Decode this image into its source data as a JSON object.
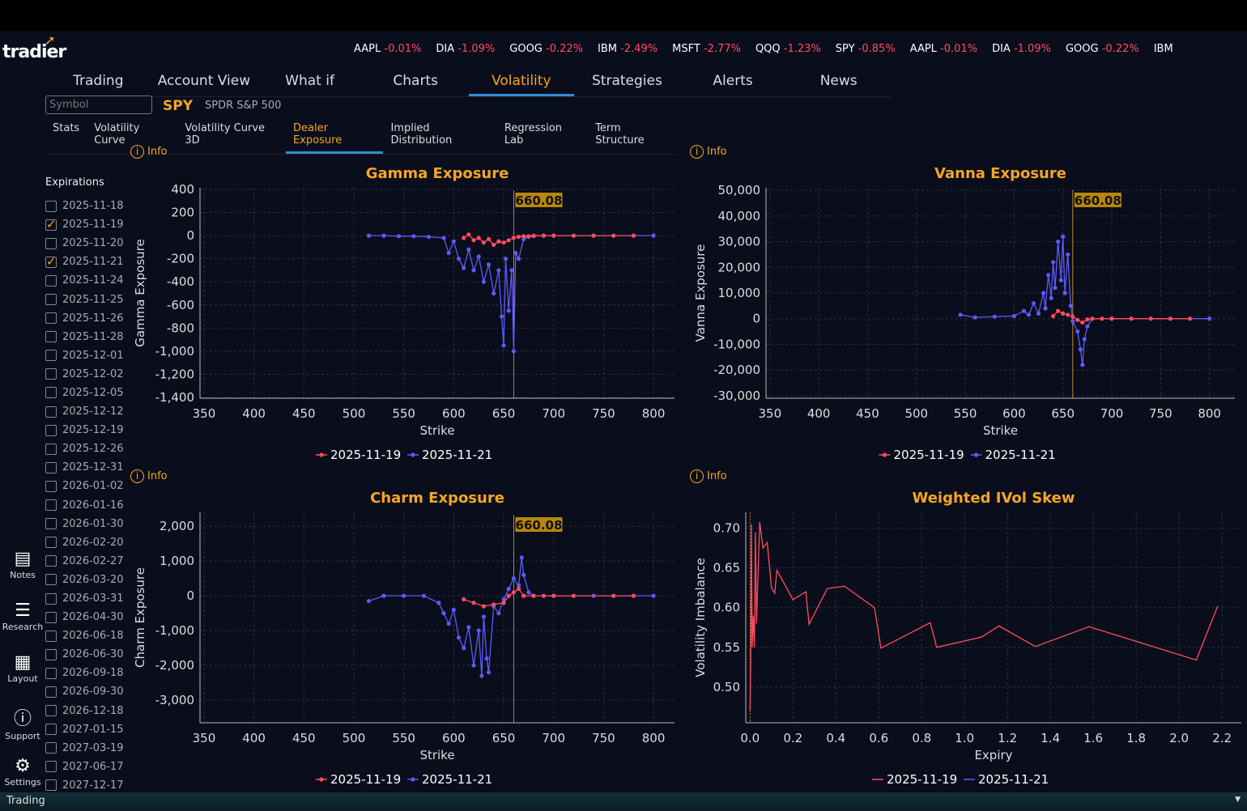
{
  "app": {
    "logo": "tradier"
  },
  "ticker": [
    {
      "sym": "AAPL",
      "chg": "-0.01%"
    },
    {
      "sym": "DIA",
      "chg": "-1.09%"
    },
    {
      "sym": "GOOG",
      "chg": "-0.22%"
    },
    {
      "sym": "IBM",
      "chg": "-2.49%"
    },
    {
      "sym": "MSFT",
      "chg": "-2.77%"
    },
    {
      "sym": "QQQ",
      "chg": "-1.23%"
    },
    {
      "sym": "SPY",
      "chg": "-0.85%"
    },
    {
      "sym": "AAPL",
      "chg": "-0.01%"
    },
    {
      "sym": "DIA",
      "chg": "-1.09%"
    },
    {
      "sym": "GOOG",
      "chg": "-0.22%"
    },
    {
      "sym": "IBM",
      "chg": ""
    }
  ],
  "nav": [
    "Trading",
    "Account View",
    "What if",
    "Charts",
    "Volatility",
    "Strategies",
    "Alerts",
    "News"
  ],
  "nav_active": 4,
  "symbol": {
    "placeholder": "Symbol",
    "ticker": "SPY",
    "name": "SPDR S&P 500"
  },
  "subtabs": [
    "Stats",
    "Volatility Curve",
    "Volatility Curve 3D",
    "Dealer Exposure",
    "Implied Distribution",
    "Regression Lab",
    "Term Structure"
  ],
  "subtab_active": 3,
  "info_label": "Info",
  "expirations_title": "Expirations",
  "expirations": [
    {
      "d": "2025-11-18",
      "c": false
    },
    {
      "d": "2025-11-19",
      "c": true
    },
    {
      "d": "2025-11-20",
      "c": false
    },
    {
      "d": "2025-11-21",
      "c": true
    },
    {
      "d": "2025-11-24",
      "c": false
    },
    {
      "d": "2025-11-25",
      "c": false
    },
    {
      "d": "2025-11-26",
      "c": false
    },
    {
      "d": "2025-11-28",
      "c": false
    },
    {
      "d": "2025-12-01",
      "c": false
    },
    {
      "d": "2025-12-02",
      "c": false
    },
    {
      "d": "2025-12-05",
      "c": false
    },
    {
      "d": "2025-12-12",
      "c": false
    },
    {
      "d": "2025-12-19",
      "c": false
    },
    {
      "d": "2025-12-26",
      "c": false
    },
    {
      "d": "2025-12-31",
      "c": false
    },
    {
      "d": "2026-01-02",
      "c": false
    },
    {
      "d": "2026-01-16",
      "c": false
    },
    {
      "d": "2026-01-30",
      "c": false
    },
    {
      "d": "2026-02-20",
      "c": false
    },
    {
      "d": "2026-02-27",
      "c": false
    },
    {
      "d": "2026-03-20",
      "c": false
    },
    {
      "d": "2026-03-31",
      "c": false
    },
    {
      "d": "2026-04-30",
      "c": false
    },
    {
      "d": "2026-06-18",
      "c": false
    },
    {
      "d": "2026-06-30",
      "c": false
    },
    {
      "d": "2026-09-18",
      "c": false
    },
    {
      "d": "2026-09-30",
      "c": false
    },
    {
      "d": "2026-12-18",
      "c": false
    },
    {
      "d": "2027-01-15",
      "c": false
    },
    {
      "d": "2027-03-19",
      "c": false
    },
    {
      "d": "2027-06-17",
      "c": false
    },
    {
      "d": "2027-12-17",
      "c": false
    }
  ],
  "side": [
    {
      "icon": "notes-icon",
      "g": "▤",
      "label": "Notes"
    },
    {
      "icon": "research-icon",
      "g": "☰",
      "label": "Research"
    },
    {
      "icon": "layout-icon",
      "g": "▦",
      "label": "Layout"
    },
    {
      "icon": "support-icon",
      "g": "ⓘ",
      "label": "Support"
    },
    {
      "icon": "settings-icon",
      "g": "⚙",
      "label": "Settings"
    }
  ],
  "bottom": {
    "label": "Trading"
  },
  "colors": {
    "red": "#ff4d5e",
    "blue": "#5a5cf5",
    "accent": "#f5a623"
  },
  "chart_data": [
    {
      "type": "line",
      "title": "Gamma Exposure",
      "xlabel": "Strike",
      "ylabel": "Gamma Exposure",
      "xlim": [
        346,
        821
      ],
      "ylim": [
        -1407,
        414
      ],
      "xticks": [
        350,
        400,
        450,
        500,
        550,
        600,
        650,
        700,
        750,
        800
      ],
      "yticks": [
        400,
        200,
        0,
        -200,
        -400,
        -600,
        -800,
        -1000,
        -1200,
        -1400
      ],
      "yfmt": "comma",
      "spot": 660.08,
      "spot_label": "660.08",
      "markers": true,
      "series": [
        {
          "name": "2025-11-19",
          "color": "#ff4d5e",
          "x": [
            610,
            615,
            620,
            625,
            630,
            635,
            640,
            645,
            650,
            655,
            660,
            665,
            670,
            675,
            680,
            690,
            700,
            720,
            740,
            760,
            780
          ],
          "y": [
            -20,
            10,
            -40,
            -20,
            -60,
            -30,
            -80,
            -50,
            -60,
            -40,
            -20,
            -10,
            -5,
            -5,
            0,
            0,
            0,
            0,
            0,
            0,
            0
          ]
        },
        {
          "name": "2025-11-21",
          "color": "#5a5cf5",
          "x": [
            515,
            530,
            545,
            560,
            575,
            590,
            595,
            600,
            605,
            610,
            615,
            620,
            625,
            630,
            635,
            640,
            645,
            648,
            650,
            652,
            655,
            658,
            660,
            662,
            665,
            670,
            675,
            680,
            690,
            700,
            720,
            740,
            760,
            780,
            800
          ],
          "y": [
            0,
            0,
            -5,
            -5,
            -10,
            -20,
            -150,
            -50,
            -200,
            -280,
            -120,
            -300,
            -180,
            -400,
            -250,
            -500,
            -300,
            -700,
            -950,
            -200,
            -650,
            -300,
            -1000,
            -150,
            -200,
            -30,
            -10,
            -5,
            0,
            0,
            0,
            0,
            0,
            0,
            0
          ]
        }
      ]
    },
    {
      "type": "line",
      "title": "Vanna Exposure",
      "xlabel": "Strike",
      "ylabel": "Vanna Exposure",
      "xlim": [
        346,
        826
      ],
      "ylim": [
        -31000,
        51000
      ],
      "xticks": [
        350,
        400,
        450,
        500,
        550,
        600,
        650,
        700,
        750,
        800
      ],
      "yticks": [
        50000,
        40000,
        30000,
        20000,
        10000,
        0,
        -10000,
        -20000,
        -30000
      ],
      "yfmt": "comma",
      "spot": 660.08,
      "spot_label": "660.08",
      "markers": true,
      "series": [
        {
          "name": "2025-11-19",
          "color": "#ff4d5e",
          "x": [
            640,
            645,
            650,
            655,
            660,
            665,
            670,
            675,
            680,
            690,
            700,
            720,
            740,
            760,
            780
          ],
          "y": [
            1000,
            3000,
            2000,
            1500,
            800,
            -500,
            -1500,
            -300,
            0,
            0,
            0,
            0,
            0,
            0,
            0
          ]
        },
        {
          "name": "2025-11-21",
          "color": "#5a5cf5",
          "x": [
            545,
            560,
            580,
            600,
            610,
            615,
            620,
            625,
            630,
            632,
            635,
            638,
            640,
            642,
            645,
            648,
            650,
            652,
            655,
            658,
            660,
            665,
            668,
            670,
            672,
            675,
            680,
            700,
            720,
            760,
            800
          ],
          "y": [
            1500,
            500,
            800,
            1000,
            3000,
            1500,
            6000,
            2000,
            10000,
            4000,
            17000,
            8000,
            22000,
            12000,
            30000,
            15000,
            32000,
            10000,
            25000,
            5000,
            -1000,
            -5000,
            -12000,
            -18000,
            -8000,
            -3000,
            0,
            0,
            0,
            0,
            0
          ]
        }
      ]
    },
    {
      "type": "line",
      "title": "Charm Exposure",
      "xlabel": "Strike",
      "ylabel": "Charm Exposure",
      "xlim": [
        346,
        821
      ],
      "ylim": [
        -3650,
        2400
      ],
      "xticks": [
        350,
        400,
        450,
        500,
        550,
        600,
        650,
        700,
        750,
        800
      ],
      "yticks": [
        2000,
        1000,
        0,
        -1000,
        -2000,
        -3000
      ],
      "yfmt": "comma",
      "spot": 660.08,
      "spot_label": "660.08",
      "markers": true,
      "series": [
        {
          "name": "2025-11-19",
          "color": "#ff4d5e",
          "x": [
            610,
            620,
            630,
            640,
            650,
            655,
            660,
            665,
            670,
            680,
            690,
            700,
            720,
            760,
            780
          ],
          "y": [
            -100,
            -200,
            -300,
            -250,
            -200,
            0,
            100,
            200,
            0,
            0,
            0,
            0,
            0,
            0,
            0
          ]
        },
        {
          "name": "2025-11-21",
          "color": "#5a5cf5",
          "x": [
            515,
            530,
            550,
            570,
            585,
            590,
            595,
            600,
            605,
            610,
            615,
            620,
            625,
            628,
            630,
            633,
            635,
            640,
            645,
            650,
            655,
            660,
            665,
            668,
            670,
            675,
            680,
            700,
            740,
            800
          ],
          "y": [
            -150,
            0,
            0,
            0,
            -200,
            -500,
            -800,
            -400,
            -1200,
            -1500,
            -900,
            -2000,
            -1000,
            -2300,
            -600,
            -1800,
            -2200,
            -300,
            -500,
            -100,
            200,
            500,
            300,
            1100,
            600,
            100,
            0,
            0,
            0,
            0
          ]
        }
      ]
    },
    {
      "type": "line",
      "title": "Weighted IVol Skew",
      "xlabel": "Expiry",
      "ylabel": "Volatility Imbalance",
      "xlim": [
        -0.02,
        2.29
      ],
      "ylim": [
        0.455,
        0.72
      ],
      "xticks": [
        0.0,
        0.2,
        0.4,
        0.6,
        0.8,
        1.0,
        1.2,
        1.4,
        1.6,
        1.8,
        2.0,
        2.2
      ],
      "yticks": [
        0.7,
        0.65,
        0.6,
        0.55,
        0.5
      ],
      "yfmt": "fixed2",
      "xfmt": "fixed1",
      "markers": false,
      "series": [
        {
          "name": "2025-11-19",
          "color": "#ff4d5e",
          "x": [
            0.0,
            0.003,
            0.006,
            0.01,
            0.015,
            0.02,
            0.025,
            0.03,
            0.045,
            0.06,
            0.08,
            0.1,
            0.115,
            0.125,
            0.16,
            0.2,
            0.26,
            0.275,
            0.36,
            0.44,
            0.58,
            0.61,
            0.84,
            0.87,
            1.08,
            1.16,
            1.33,
            1.58,
            2.08,
            2.18
          ],
          "y": [
            0.47,
            0.535,
            0.705,
            0.55,
            0.59,
            0.55,
            0.695,
            0.58,
            0.708,
            0.675,
            0.682,
            0.625,
            0.618,
            0.647,
            0.63,
            0.61,
            0.62,
            0.579,
            0.624,
            0.627,
            0.6,
            0.549,
            0.581,
            0.55,
            0.563,
            0.577,
            0.551,
            0.576,
            0.534,
            0.602
          ]
        },
        {
          "name": "2025-11-21",
          "color": "#5a5cf5",
          "x": [],
          "y": []
        }
      ]
    }
  ]
}
